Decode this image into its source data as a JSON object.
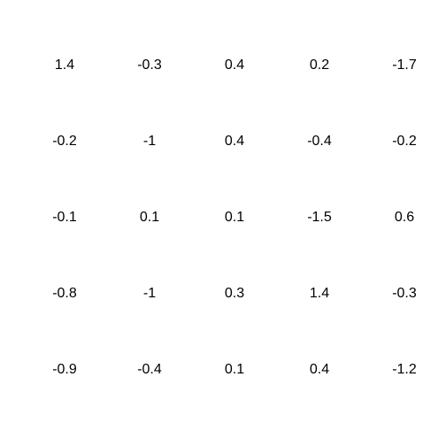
{
  "chart_data": {
    "type": "table",
    "title": "",
    "xlabel": "",
    "ylabel": "",
    "grid": false,
    "rows": [
      [
        "1.4",
        "-0.3",
        "0.4",
        "0.2",
        "-1.7"
      ],
      [
        "-0.2",
        "-1",
        "0.4",
        "-0.4",
        "-0.2"
      ],
      [
        "-0.1",
        "0.1",
        "0.1",
        "-1.5",
        "0.6"
      ],
      [
        "-0.8",
        "-1",
        "0.3",
        "1.4",
        "-0.3"
      ],
      [
        "-0.9",
        "-0.4",
        "0.1",
        "0.4",
        "-1.2"
      ]
    ],
    "text_color": "#000000",
    "background": "#ffffff"
  }
}
